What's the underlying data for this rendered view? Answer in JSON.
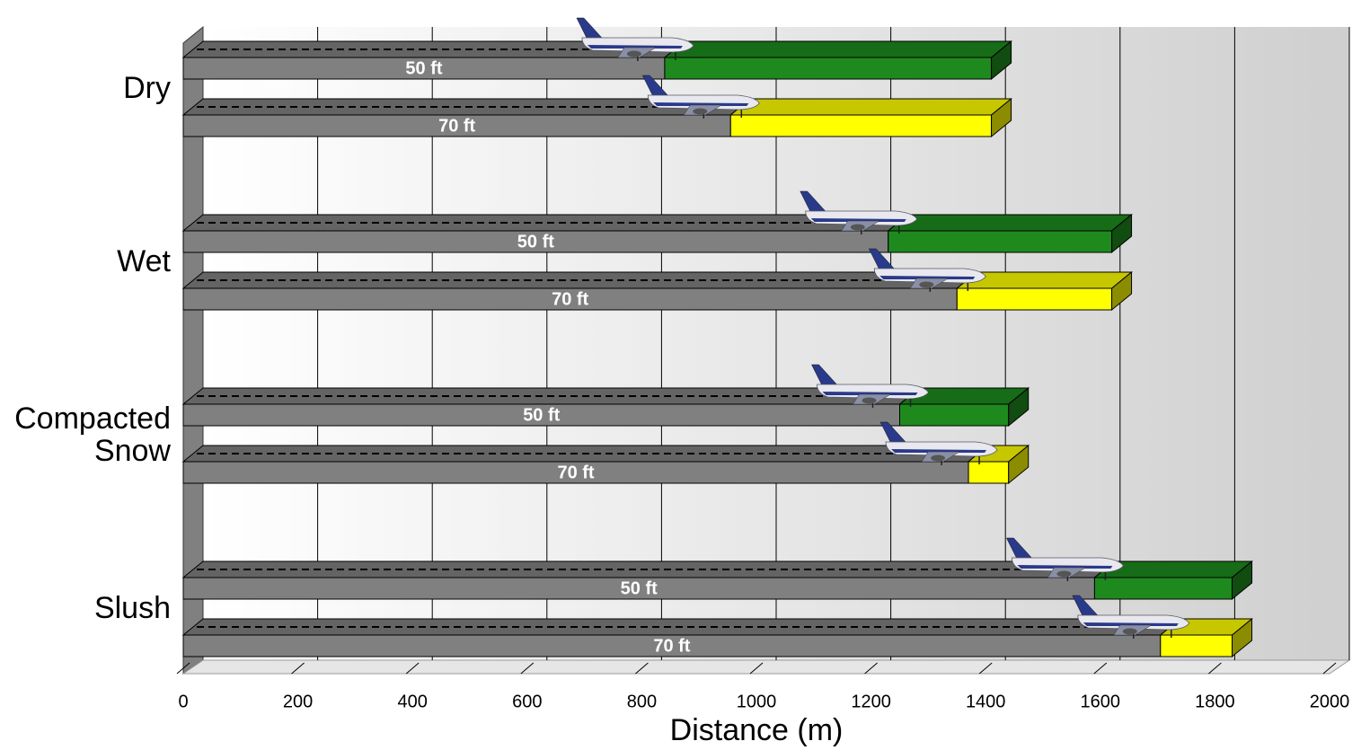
{
  "chart_data": {
    "type": "bar3d",
    "orientation": "horizontal",
    "stacked": true,
    "x_label": "Distance (m)",
    "categories": [
      "Dry",
      "Wet",
      "Compacted Snow",
      "Slush"
    ],
    "base_color": "#808080",
    "series": [
      {
        "name": "50 ft",
        "values": [
          840,
          1230,
          1250,
          1590
        ],
        "margin": [
          570,
          390,
          190,
          240
        ],
        "color": "#1e8a1e"
      },
      {
        "name": "70 ft",
        "values": [
          955,
          1350,
          1370,
          1705
        ],
        "margin": [
          455,
          270,
          70,
          125
        ],
        "color": "#ffff00"
      }
    ],
    "xlim": [
      0,
      2000
    ],
    "xticks": [
      0,
      200,
      400,
      600,
      800,
      1000,
      1200,
      1400,
      1600,
      1800,
      2000
    ],
    "grid": true
  }
}
